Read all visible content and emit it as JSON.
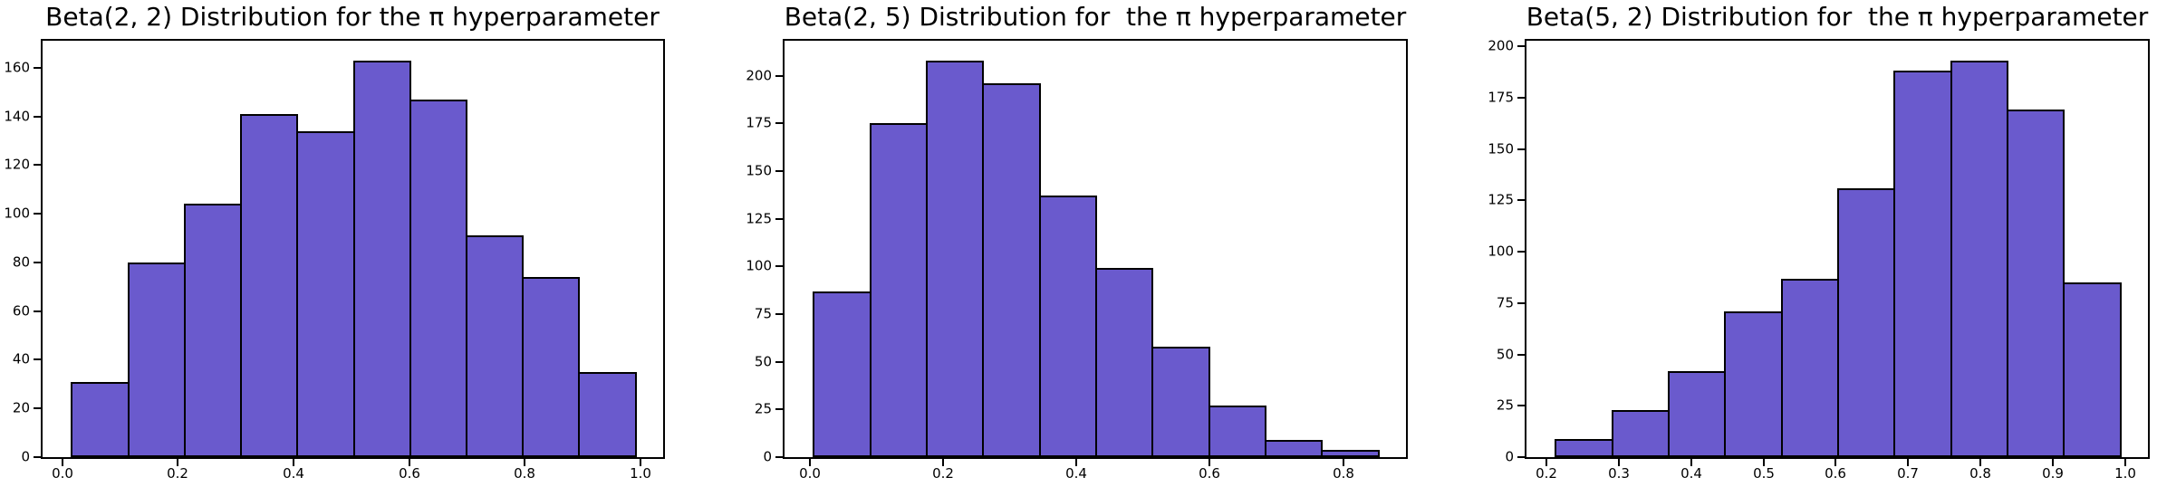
{
  "figure": {
    "background": "#ffffff",
    "bar_fill_color": "#6A5ACD",
    "bar_edge_color": "#000000"
  },
  "chart_data": [
    {
      "type": "bar",
      "chart_kind": "histogram",
      "title": "Beta(2, 2) Distribution for the π hyperparameter",
      "xlabel": "",
      "ylabel": "",
      "grid": false,
      "legend": null,
      "bin_edges": [
        0.015,
        0.1125,
        0.21,
        0.3075,
        0.405,
        0.5025,
        0.6,
        0.6975,
        0.795,
        0.8925,
        0.99
      ],
      "values": [
        31,
        80,
        104,
        141,
        134,
        163,
        147,
        91,
        74,
        35
      ],
      "xticks": [
        0.0,
        0.2,
        0.4,
        0.6,
        0.8,
        1.0
      ],
      "xtick_labels": [
        "0.0",
        "0.2",
        "0.4",
        "0.6",
        "0.8",
        "1.0"
      ],
      "yticks": [
        0,
        20,
        40,
        60,
        80,
        100,
        120,
        140,
        160
      ],
      "ytick_labels": [
        "0",
        "20",
        "40",
        "60",
        "80",
        "100",
        "120",
        "140",
        "160"
      ],
      "xlim": [
        -0.034,
        1.039
      ],
      "ylim": [
        0,
        171.15
      ]
    },
    {
      "type": "bar",
      "chart_kind": "histogram",
      "title": "Beta(2, 5) Distribution for  the π hyperparameter",
      "xlabel": "",
      "ylabel": "",
      "grid": false,
      "legend": null,
      "bin_edges": [
        0.005,
        0.0897,
        0.1744,
        0.2591,
        0.3438,
        0.4285,
        0.5132,
        0.5979,
        0.6826,
        0.7673,
        0.852
      ],
      "values": [
        87,
        175,
        208,
        196,
        137,
        99,
        58,
        27,
        9,
        4
      ],
      "xticks": [
        0.0,
        0.2,
        0.4,
        0.6,
        0.8
      ],
      "xtick_labels": [
        "0.0",
        "0.2",
        "0.4",
        "0.6",
        "0.8"
      ],
      "yticks": [
        0,
        25,
        50,
        75,
        100,
        125,
        150,
        175,
        200
      ],
      "ytick_labels": [
        "0",
        "25",
        "50",
        "75",
        "100",
        "125",
        "150",
        "175",
        "200"
      ],
      "xlim": [
        -0.0374,
        0.8944
      ],
      "ylim": [
        0,
        218.4
      ]
    },
    {
      "type": "bar",
      "chart_kind": "histogram",
      "title": "Beta(5, 2) Distribution for  the π hyperparameter",
      "xlabel": "",
      "ylabel": "",
      "grid": false,
      "legend": null,
      "bin_edges": [
        0.2115,
        0.2896,
        0.3677,
        0.4458,
        0.5239,
        0.602,
        0.6801,
        0.7582,
        0.8363,
        0.9144,
        0.9925
      ],
      "values": [
        9,
        23,
        42,
        71,
        87,
        131,
        188,
        193,
        169,
        85
      ],
      "xticks": [
        0.2,
        0.3,
        0.4,
        0.5,
        0.6,
        0.7,
        0.8,
        0.9,
        1.0
      ],
      "xtick_labels": [
        "0.2",
        "0.3",
        "0.4",
        "0.5",
        "0.6",
        "0.7",
        "0.8",
        "0.9",
        "1.0"
      ],
      "yticks": [
        0,
        25,
        50,
        75,
        100,
        125,
        150,
        175,
        200
      ],
      "ytick_labels": [
        "0",
        "25",
        "50",
        "75",
        "100",
        "125",
        "150",
        "175",
        "200"
      ],
      "xlim": [
        0.1725,
        1.0315
      ],
      "ylim": [
        0,
        202.65
      ]
    }
  ]
}
